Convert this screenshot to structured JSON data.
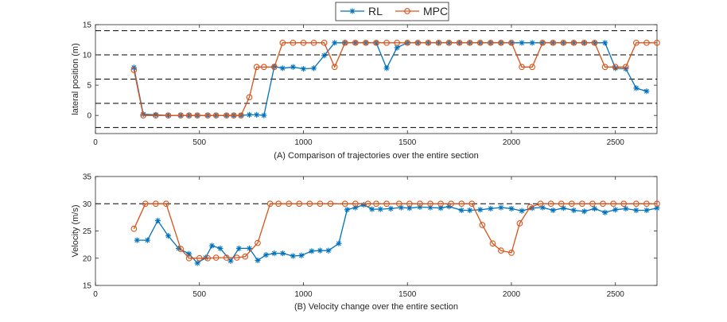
{
  "colors": {
    "rl": "#0072BD",
    "mpc": "#D95319",
    "ref": "#000000",
    "axis": "#262626"
  },
  "legend": {
    "rl": "RL",
    "mpc": "MPC",
    "placement": "top-center"
  },
  "chart_data": [
    {
      "type": "line",
      "title": "",
      "xlabel": "(A) Comparison of trajectories over the entire section",
      "ylabel": "lateral position (m)",
      "xlim": [
        0,
        2700
      ],
      "ylim": [
        -3,
        15
      ],
      "xticks": [
        "0",
        "500",
        "1000",
        "1500",
        "2000",
        "2500"
      ],
      "yticks": [
        "0",
        "5",
        "10",
        "15"
      ],
      "dashed_reference_lines": [
        -2,
        2,
        6,
        10,
        14
      ],
      "series": [
        {
          "name": "RL",
          "marker": "asterisk",
          "x": [
            185,
            230,
            290,
            350,
            410,
            450,
            490,
            540,
            580,
            630,
            665,
            700,
            740,
            775,
            810,
            860,
            900,
            950,
            1000,
            1050,
            1100,
            1150,
            1200,
            1250,
            1300,
            1350,
            1400,
            1450,
            1500,
            1550,
            1600,
            1650,
            1700,
            1750,
            1800,
            1850,
            1900,
            1950,
            2000,
            2050,
            2100,
            2150,
            2200,
            2250,
            2300,
            2350,
            2400,
            2450,
            2500,
            2550,
            2600,
            2650
          ],
          "y": [
            7.9,
            0.2,
            0.1,
            0,
            0,
            0,
            0,
            0,
            0,
            0,
            0,
            0,
            0.1,
            0.1,
            0,
            8.1,
            7.8,
            8,
            7.7,
            7.8,
            9.9,
            12,
            12,
            12,
            12,
            12,
            7.8,
            11.2,
            12,
            12,
            12,
            12,
            12,
            12,
            12,
            12,
            12,
            12,
            12,
            12,
            12,
            12,
            12,
            12,
            12,
            12,
            12,
            12,
            7.8,
            7.7,
            4.5,
            4
          ]
        },
        {
          "name": "MPC",
          "marker": "circle",
          "x": [
            185,
            230,
            290,
            350,
            410,
            450,
            490,
            540,
            580,
            630,
            665,
            700,
            740,
            775,
            810,
            860,
            900,
            950,
            1000,
            1050,
            1100,
            1150,
            1200,
            1250,
            1300,
            1350,
            1400,
            1450,
            1500,
            1550,
            1600,
            1650,
            1700,
            1750,
            1800,
            1850,
            1900,
            1950,
            2000,
            2050,
            2100,
            2150,
            2200,
            2250,
            2300,
            2350,
            2400,
            2450,
            2500,
            2550,
            2600,
            2650,
            2700
          ],
          "y": [
            7.5,
            0,
            0,
            0,
            0,
            0,
            0,
            0,
            0,
            0,
            0,
            0,
            3,
            8,
            8,
            8,
            12,
            12,
            12,
            12,
            12,
            8,
            12,
            12,
            12,
            12,
            12,
            12,
            12,
            12,
            12,
            12,
            12,
            12,
            12,
            12,
            12,
            12,
            12,
            8,
            8,
            12,
            12,
            12,
            12,
            12,
            12,
            8,
            8,
            8,
            12,
            12,
            12
          ]
        }
      ]
    },
    {
      "type": "line",
      "title": "",
      "xlabel": "(B) Velocity change over the entire section",
      "ylabel": "Velocity (m/s)",
      "xlim": [
        0,
        2700
      ],
      "ylim": [
        15,
        35
      ],
      "xticks": [
        "0",
        "500",
        "1000",
        "1500",
        "2000",
        "2500"
      ],
      "yticks": [
        "15",
        "20",
        "25",
        "30",
        "35"
      ],
      "dashed_reference_lines": [
        30
      ],
      "series": [
        {
          "name": "RL",
          "marker": "asterisk",
          "x": [
            200,
            250,
            300,
            350,
            400,
            450,
            490,
            530,
            560,
            600,
            650,
            690,
            740,
            780,
            820,
            860,
            900,
            950,
            990,
            1040,
            1080,
            1120,
            1170,
            1210,
            1250,
            1290,
            1330,
            1370,
            1420,
            1470,
            1510,
            1560,
            1610,
            1660,
            1700,
            1760,
            1800,
            1850,
            1900,
            1950,
            2000,
            2050,
            2100,
            2150,
            2200,
            2250,
            2300,
            2350,
            2400,
            2450,
            2500,
            2550,
            2600,
            2650,
            2700
          ],
          "y": [
            23.3,
            23.3,
            26.9,
            24.1,
            21.8,
            20.8,
            19.1,
            20.1,
            22.3,
            21.8,
            19.5,
            21.8,
            21.8,
            19.6,
            20.6,
            20.9,
            20.9,
            20.4,
            20.5,
            21.3,
            21.4,
            21.4,
            22.7,
            28.9,
            29.3,
            29.8,
            29,
            29,
            29.1,
            29.3,
            29.2,
            29.4,
            29.3,
            29.2,
            29.5,
            28.8,
            28.8,
            28.9,
            29.1,
            29.3,
            29.1,
            28.7,
            29.2,
            29.3,
            28.8,
            29.2,
            28.8,
            28.6,
            29.1,
            28.4,
            28.9,
            29.1,
            28.8,
            28.8,
            29.2
          ]
        },
        {
          "name": "MPC",
          "marker": "circle",
          "x": [
            185,
            240,
            290,
            340,
            410,
            450,
            500,
            540,
            580,
            630,
            680,
            720,
            780,
            840,
            880,
            930,
            980,
            1030,
            1080,
            1130,
            1200,
            1250,
            1310,
            1350,
            1400,
            1460,
            1510,
            1560,
            1610,
            1660,
            1710,
            1760,
            1810,
            1860,
            1910,
            1950,
            2000,
            2040,
            2090,
            2140,
            2190,
            2240,
            2290,
            2340,
            2390,
            2440,
            2490,
            2540,
            2600,
            2650,
            2700
          ],
          "y": [
            25.4,
            30,
            30,
            30,
            21.7,
            20,
            20,
            20,
            20.1,
            20.1,
            20.1,
            20.3,
            22.8,
            30,
            30,
            30,
            30,
            30,
            30,
            30,
            30,
            30,
            30,
            30,
            30,
            30,
            30,
            30,
            30,
            30,
            30,
            30,
            30,
            26.1,
            22.7,
            21.4,
            21,
            26.4,
            29.4,
            30,
            30,
            30,
            30,
            30,
            30,
            30,
            30,
            30,
            30,
            30,
            30
          ]
        }
      ]
    }
  ]
}
